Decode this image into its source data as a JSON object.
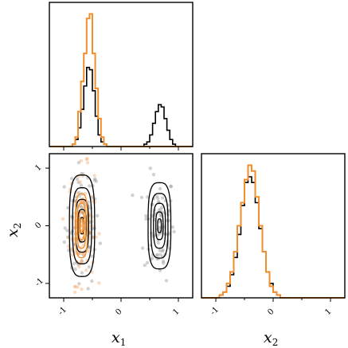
{
  "chart_data": {
    "type": "corner",
    "colors": {
      "series_a": "#000000",
      "series_b": "#f28e2b",
      "scatter_a": "#9a9a9a",
      "scatter_b": "#f5a766"
    },
    "x1": {
      "xlabel": "x",
      "xlabel_sub": "1",
      "xlim": [
        -1.25,
        1.25
      ],
      "ticks": [
        -1,
        0,
        1
      ],
      "tick_labels": [
        "-1",
        "0",
        "1"
      ],
      "bin_start": -1.25,
      "bin_width": 0.05,
      "hist_a": [
        0,
        0,
        0,
        0,
        0,
        0,
        0,
        0,
        1,
        3,
        8,
        16,
        26,
        34,
        33,
        24,
        13,
        5,
        2,
        1,
        0,
        0,
        0,
        0,
        0,
        0,
        0,
        0,
        0,
        0,
        0,
        0,
        0,
        1,
        2,
        5,
        10,
        15,
        18,
        17,
        12,
        7,
        3,
        1,
        0,
        0,
        0,
        0,
        0,
        0
      ],
      "hist_b": [
        0,
        0,
        0,
        0,
        0,
        0,
        0,
        0,
        1,
        4,
        15,
        28,
        40,
        55,
        57,
        40,
        25,
        12,
        4,
        1,
        0,
        0,
        0,
        0,
        0,
        0,
        0,
        0,
        0,
        0,
        0,
        0,
        0,
        0,
        0,
        0,
        0,
        0,
        0,
        0,
        0,
        0,
        0,
        0,
        0,
        0,
        0,
        0,
        0,
        0
      ]
    },
    "x2": {
      "xlabel": "x",
      "xlabel_sub": "2",
      "ylim": [
        -1.25,
        1.25
      ],
      "ticks": [
        -1,
        0,
        1
      ],
      "tick_labels": [
        "-1",
        "0",
        "1"
      ],
      "bin_start": -1.25,
      "bin_width": 0.0625,
      "hist_a": [
        0,
        0,
        0,
        0,
        0,
        1,
        2,
        4,
        8,
        14,
        22,
        32,
        40,
        42,
        40,
        33,
        24,
        16,
        9,
        5,
        2,
        1,
        0,
        0,
        0,
        0,
        0,
        0,
        0,
        0,
        0,
        0,
        0,
        0,
        0,
        0,
        0,
        0,
        0,
        0
      ],
      "hist_b": [
        0,
        0,
        0,
        0,
        0,
        1,
        2,
        5,
        9,
        16,
        25,
        33,
        41,
        46,
        44,
        35,
        25,
        16,
        9,
        4,
        2,
        1,
        0,
        0,
        0,
        0,
        0,
        0,
        0,
        0,
        0,
        0,
        0,
        0,
        0,
        0,
        0,
        0,
        0,
        0
      ]
    },
    "joint": {
      "modes_a": [
        {
          "cx": -0.68,
          "cy": 0.0,
          "sx": 0.1,
          "sy": 0.4
        },
        {
          "cx": 0.67,
          "cy": 0.0,
          "sx": 0.09,
          "sy": 0.34
        }
      ],
      "mode_b": {
        "cx": -0.69,
        "cy": 0.0,
        "sx": 0.07,
        "sy": 0.37
      },
      "contour_levels_a": [
        1.0,
        0.75,
        0.52,
        0.32,
        0.16
      ],
      "contour_levels_b": [
        0.68,
        0.48,
        0.3,
        0.15
      ]
    }
  }
}
